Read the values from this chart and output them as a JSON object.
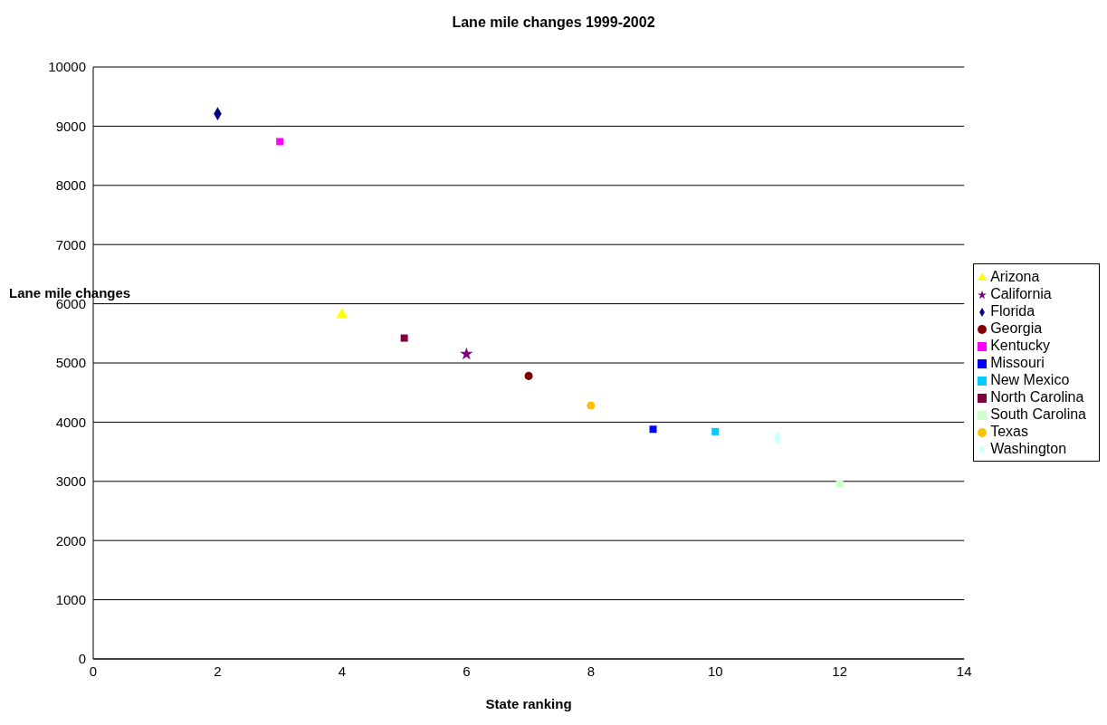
{
  "chart_data": {
    "type": "scatter",
    "title": "Lane mile changes 1999-2002",
    "xlabel": "State ranking",
    "ylabel": "Lane mile changes",
    "xlim": [
      0,
      14
    ],
    "xticks": [
      0,
      2,
      4,
      6,
      8,
      10,
      12,
      14
    ],
    "ylim": [
      0,
      10000
    ],
    "yticks": [
      0,
      1000,
      2000,
      3000,
      4000,
      5000,
      6000,
      7000,
      8000,
      9000,
      10000
    ],
    "grid": "y",
    "legend": "right",
    "series": [
      {
        "name": "Florida",
        "color": "#000080",
        "x": [
          2
        ],
        "values": [
          9210
        ],
        "marker": "diamond"
      },
      {
        "name": "Kentucky",
        "color": "#ff00ff",
        "x": [
          3
        ],
        "values": [
          8740
        ],
        "marker": "square"
      },
      {
        "name": "Arizona",
        "color": "#ffff00",
        "x": [
          4
        ],
        "values": [
          5820
        ],
        "marker": "triangle"
      },
      {
        "name": "North Carolina",
        "color": "#800040",
        "x": [
          5
        ],
        "values": [
          5420
        ],
        "marker": "square"
      },
      {
        "name": "California",
        "color": "#800080",
        "x": [
          6
        ],
        "values": [
          5150
        ],
        "marker": "star"
      },
      {
        "name": "Georgia",
        "color": "#800000",
        "x": [
          7
        ],
        "values": [
          4780
        ],
        "marker": "circle"
      },
      {
        "name": "Texas",
        "color": "#ffc000",
        "x": [
          8
        ],
        "values": [
          4280
        ],
        "marker": "circle"
      },
      {
        "name": "Missouri",
        "color": "#0000ff",
        "x": [
          9
        ],
        "values": [
          3880
        ],
        "marker": "square"
      },
      {
        "name": "New Mexico",
        "color": "#00ccff",
        "x": [
          10
        ],
        "values": [
          3840
        ],
        "marker": "square"
      },
      {
        "name": "Washington",
        "color": "#ccffff",
        "x": [
          11
        ],
        "values": [
          3730
        ],
        "marker": "diamond"
      },
      {
        "name": "South Carolina",
        "color": "#ccffcc",
        "x": [
          12
        ],
        "values": [
          2960
        ],
        "marker": "square"
      }
    ]
  }
}
